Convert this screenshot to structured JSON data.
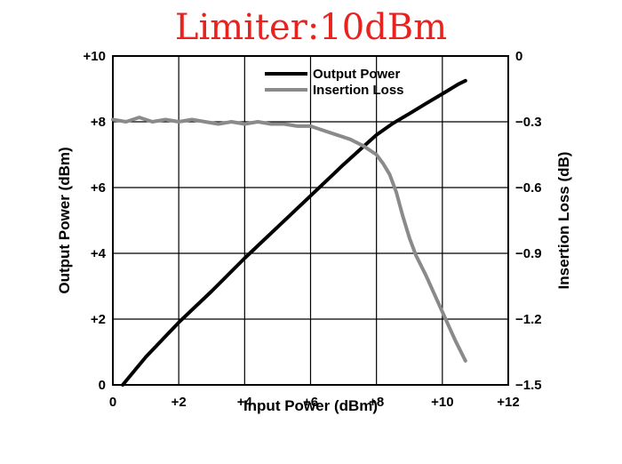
{
  "chart_data": {
    "type": "line",
    "title": "Limiter:10dBm",
    "xlabel": "Input Power (dBm)",
    "ylabel": "Output Power (dBm)",
    "y2label": "Insertion Loss (dB)",
    "xlim": [
      0,
      12
    ],
    "ylim": [
      0,
      10
    ],
    "y2lim": [
      -1.5,
      0
    ],
    "xticks": [
      "0",
      "+2",
      "+4",
      "+6",
      "+8",
      "+10",
      "+12"
    ],
    "yticks": [
      "0",
      "+2",
      "+4",
      "+6",
      "+8",
      "+10"
    ],
    "y2ticks": [
      "0",
      "-0.3",
      "-0.6",
      "-0.9",
      "-1.2",
      "-1.5"
    ],
    "grid": true,
    "legend_position": "top-center",
    "series": [
      {
        "name": "Output Power",
        "axis": "left",
        "color": "#000000",
        "x": [
          0.3,
          1,
          2,
          3,
          4,
          5,
          6,
          7,
          7.5,
          8,
          8.5,
          9,
          9.5,
          10,
          10.5,
          10.7
        ],
        "y": [
          0.0,
          0.85,
          1.9,
          2.85,
          3.85,
          4.8,
          5.75,
          6.7,
          7.15,
          7.6,
          7.95,
          8.25,
          8.55,
          8.85,
          9.15,
          9.25
        ]
      },
      {
        "name": "Insertion Loss",
        "axis": "right",
        "color": "#8a8a8a",
        "x": [
          0,
          0.4,
          0.8,
          1.2,
          1.6,
          2,
          2.4,
          2.8,
          3.2,
          3.6,
          4,
          4.4,
          4.8,
          5.2,
          5.6,
          6,
          6.4,
          6.8,
          7.2,
          7.6,
          8,
          8.2,
          8.4,
          8.6,
          8.8,
          9,
          9.2,
          9.5,
          9.8,
          10.1,
          10.4,
          10.7
        ],
        "y": [
          -0.29,
          -0.3,
          -0.28,
          -0.3,
          -0.29,
          -0.3,
          -0.29,
          -0.3,
          -0.31,
          -0.3,
          -0.31,
          -0.3,
          -0.31,
          -0.31,
          -0.32,
          -0.32,
          -0.34,
          -0.36,
          -0.38,
          -0.41,
          -0.45,
          -0.49,
          -0.54,
          -0.62,
          -0.73,
          -0.83,
          -0.91,
          -1.0,
          -1.1,
          -1.2,
          -1.3,
          -1.39
        ]
      }
    ]
  }
}
